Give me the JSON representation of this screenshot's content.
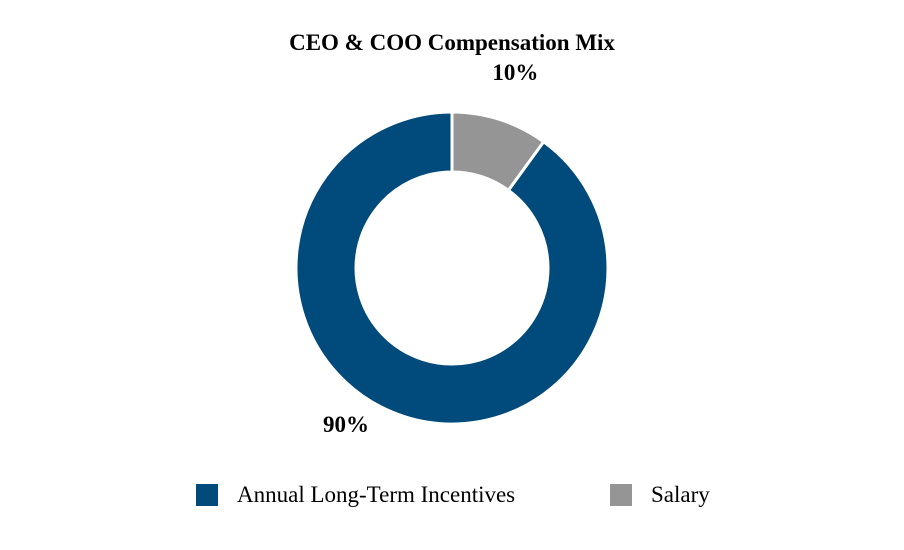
{
  "chart_data": {
    "type": "pie",
    "title": "CEO & COO Compensation Mix",
    "donut": true,
    "categories": [
      "Annual Long-Term Incentives",
      "Salary"
    ],
    "values": [
      90,
      10
    ],
    "data_labels": [
      "90%",
      "10%"
    ],
    "colors": [
      "#004a7c",
      "#959595"
    ],
    "legend_position": "bottom"
  }
}
